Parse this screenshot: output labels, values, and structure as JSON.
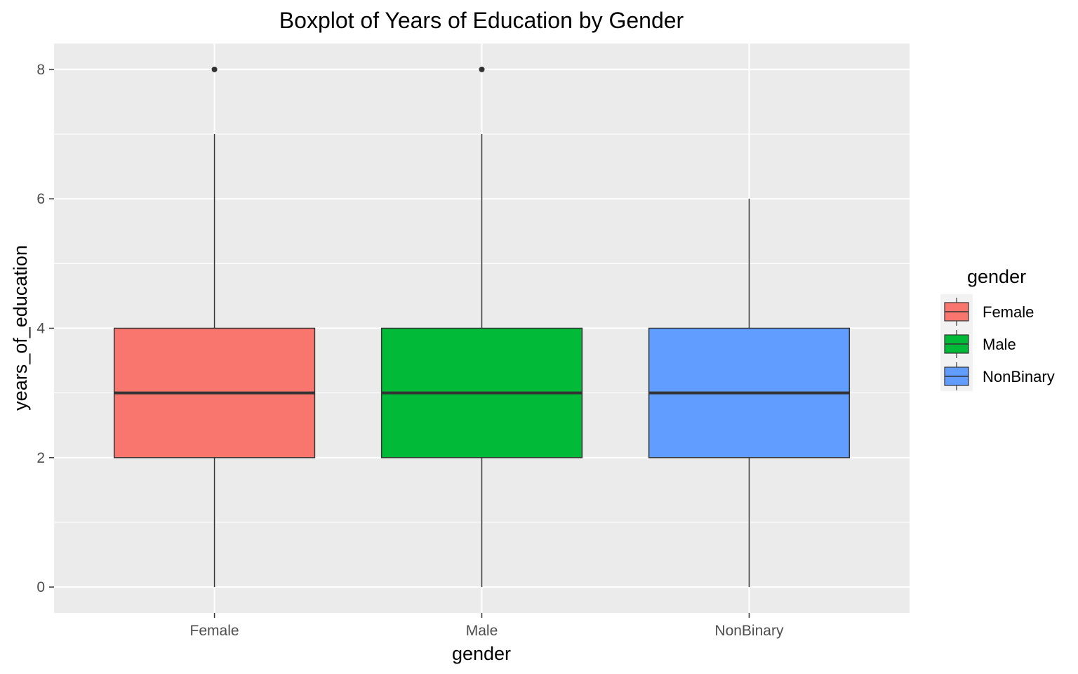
{
  "chart_data": {
    "type": "boxplot",
    "title": "Boxplot of Years of Education by Gender",
    "xlabel": "gender",
    "ylabel": "years_of_education",
    "ylim": [
      -0.4,
      8.4
    ],
    "yticks": [
      0,
      2,
      4,
      6,
      8
    ],
    "grid": true,
    "legend": {
      "title": "gender",
      "placement": "right"
    },
    "categories": [
      "Female",
      "Male",
      "NonBinary"
    ],
    "boxes": [
      {
        "name": "Female",
        "whisker_low": 0,
        "q1": 2,
        "median": 3,
        "q3": 4,
        "whisker_high": 7,
        "outliers": [
          8
        ],
        "color": "#F8766D"
      },
      {
        "name": "Male",
        "whisker_low": 0,
        "q1": 2,
        "median": 3,
        "q3": 4,
        "whisker_high": 7,
        "outliers": [
          8
        ],
        "color": "#00BA38"
      },
      {
        "name": "NonBinary",
        "whisker_low": 0,
        "q1": 2,
        "median": 3,
        "q3": 4,
        "whisker_high": 6,
        "outliers": [],
        "color": "#619CFF"
      }
    ]
  }
}
